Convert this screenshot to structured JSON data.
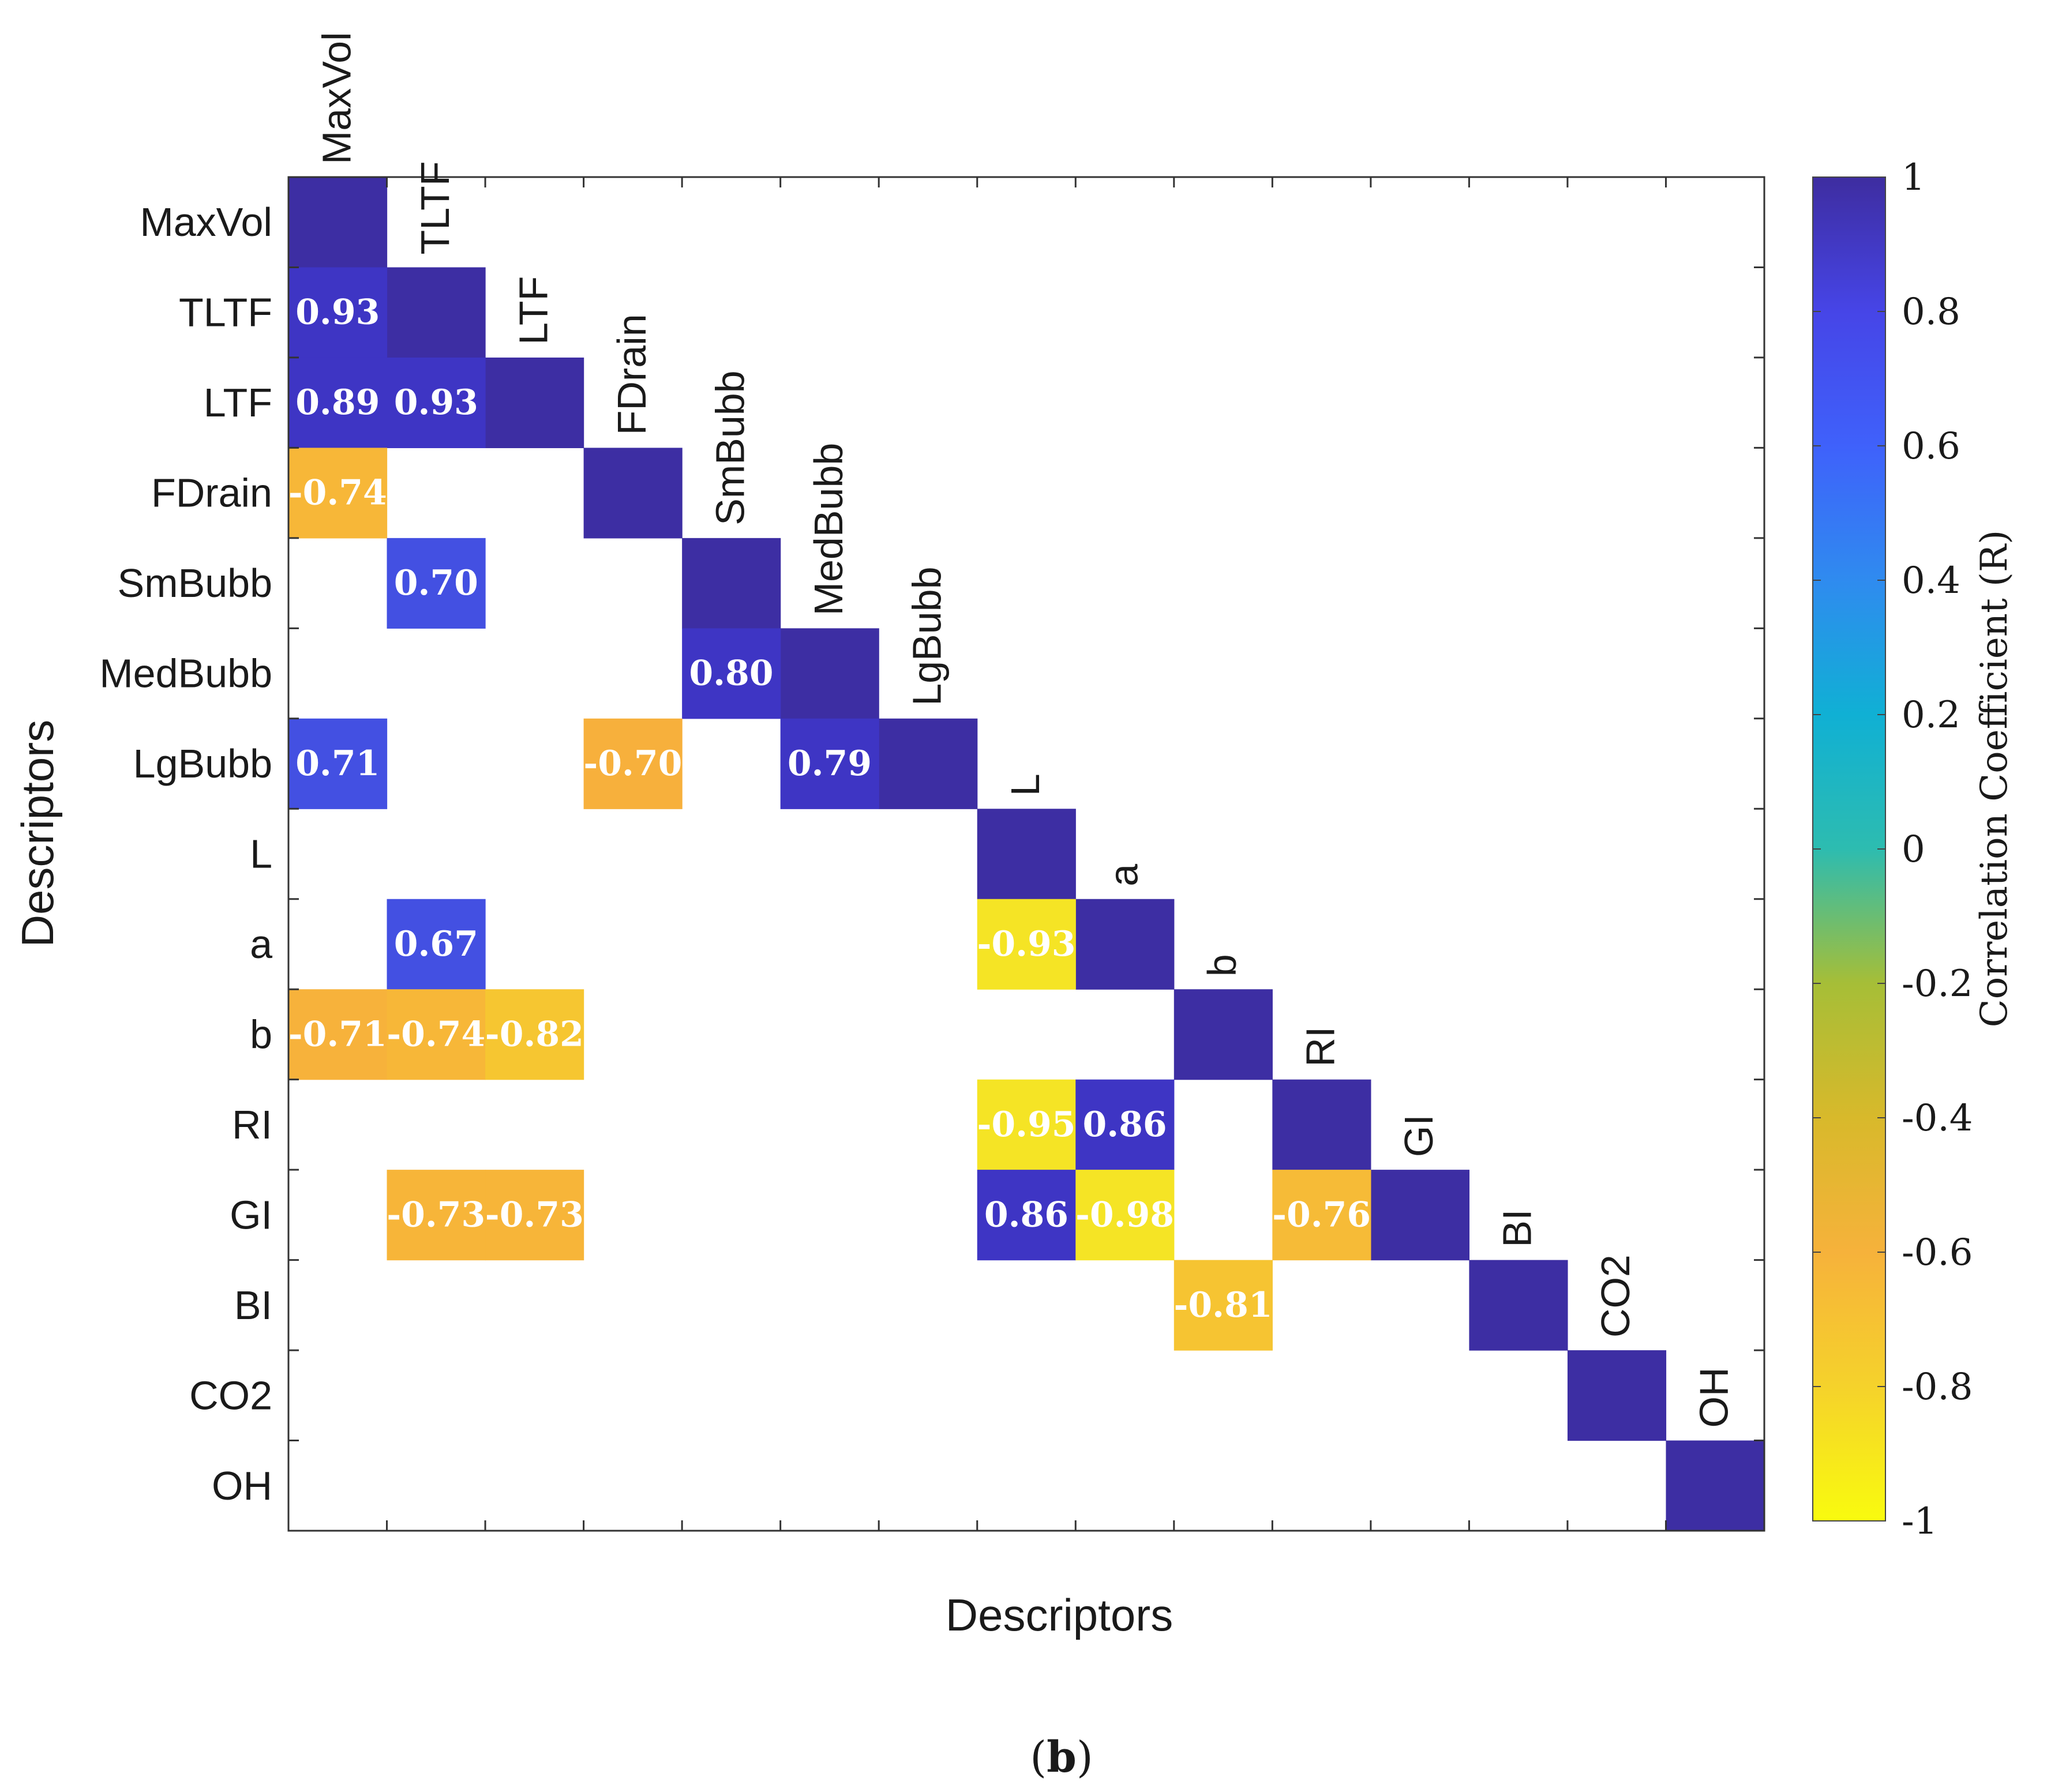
{
  "chart_data": {
    "type": "heatmap",
    "xlabel": "Descriptors",
    "ylabel": "Descriptors",
    "labels": [
      "MaxVol",
      "TLTF",
      "LTF",
      "FDrain",
      "SmBubb",
      "MedBubb",
      "LgBubb",
      "L",
      "a",
      "b",
      "RI",
      "GI",
      "BI",
      "CO2",
      "OH"
    ],
    "cells": [
      {
        "row": "TLTF",
        "col": "MaxVol",
        "value": 0.93,
        "label": "0.93"
      },
      {
        "row": "LTF",
        "col": "MaxVol",
        "value": 0.89,
        "label": "0.89"
      },
      {
        "row": "LTF",
        "col": "TLTF",
        "value": 0.93,
        "label": "0.93"
      },
      {
        "row": "FDrain",
        "col": "MaxVol",
        "value": -0.74,
        "label": "-0.74"
      },
      {
        "row": "SmBubb",
        "col": "TLTF",
        "value": 0.7,
        "label": "0.70"
      },
      {
        "row": "MedBubb",
        "col": "SmBubb",
        "value": 0.8,
        "label": "0.80"
      },
      {
        "row": "LgBubb",
        "col": "MaxVol",
        "value": 0.71,
        "label": "0.71"
      },
      {
        "row": "LgBubb",
        "col": "FDrain",
        "value": -0.7,
        "label": "-0.70"
      },
      {
        "row": "LgBubb",
        "col": "MedBubb",
        "value": 0.79,
        "label": "0.79"
      },
      {
        "row": "a",
        "col": "TLTF",
        "value": 0.67,
        "label": "0.67"
      },
      {
        "row": "a",
        "col": "L",
        "value": -0.93,
        "label": "-0.93"
      },
      {
        "row": "b",
        "col": "MaxVol",
        "value": -0.71,
        "label": "-0.71"
      },
      {
        "row": "b",
        "col": "TLTF",
        "value": -0.74,
        "label": "-0.74"
      },
      {
        "row": "b",
        "col": "LTF",
        "value": -0.82,
        "label": "-0.82"
      },
      {
        "row": "RI",
        "col": "L",
        "value": -0.95,
        "label": "-0.95"
      },
      {
        "row": "RI",
        "col": "a",
        "value": 0.86,
        "label": "0.86"
      },
      {
        "row": "GI",
        "col": "TLTF",
        "value": -0.73,
        "label": "-0.73"
      },
      {
        "row": "GI",
        "col": "LTF",
        "value": -0.73,
        "label": "-0.73"
      },
      {
        "row": "GI",
        "col": "L",
        "value": 0.86,
        "label": "0.86"
      },
      {
        "row": "GI",
        "col": "a",
        "value": -0.98,
        "label": "-0.98"
      },
      {
        "row": "GI",
        "col": "RI",
        "value": -0.76,
        "label": "-0.76"
      },
      {
        "row": "BI",
        "col": "b",
        "value": -0.81,
        "label": "-0.81"
      }
    ],
    "diagonal_value": 1,
    "colorbar": {
      "label": "Correlation Coefficient (R)",
      "range": [
        -1,
        1
      ],
      "ticks": [
        "1",
        "0.8",
        "0.6",
        "0.4",
        "0.2",
        "0",
        "-0.2",
        "-0.4",
        "-0.6",
        "-0.8",
        "-1"
      ],
      "tick_values": [
        1,
        0.8,
        0.6,
        0.4,
        0.2,
        0,
        -0.2,
        -0.4,
        -0.6,
        -0.8,
        -1
      ]
    },
    "panel_label": "(b)",
    "panel_letter": "b",
    "colors": {
      "diagonal": "#3d2ea3",
      "positive_strong": "#3e35c4",
      "positive_mid": "#4350e2",
      "negative_mid": "#f7b03c",
      "negative_strong": "#f5e425"
    }
  }
}
